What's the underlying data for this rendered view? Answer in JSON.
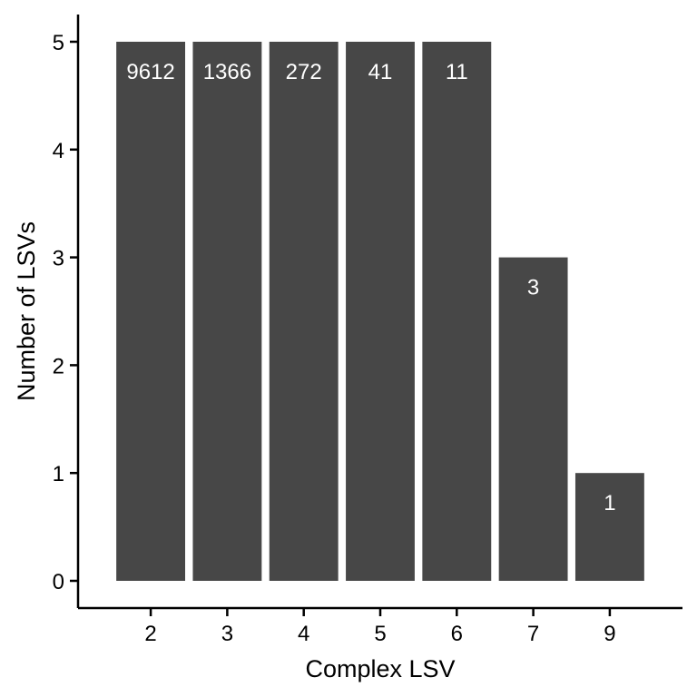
{
  "chart_data": {
    "type": "bar",
    "categories": [
      "2",
      "3",
      "4",
      "5",
      "6",
      "7",
      "9"
    ],
    "values": [
      5,
      5,
      5,
      5,
      5,
      3,
      1
    ],
    "data_labels": [
      "9612",
      "1366",
      "272",
      "41",
      "11",
      "3",
      "1"
    ],
    "xlabel": "Complex LSV",
    "ylabel": "Number of LSVs",
    "ylim": [
      0,
      5
    ],
    "yticks": [
      "0",
      "1",
      "2",
      "3",
      "4",
      "5"
    ],
    "grid": false,
    "bar_color": "#474747",
    "label_color": "#ffffff"
  }
}
